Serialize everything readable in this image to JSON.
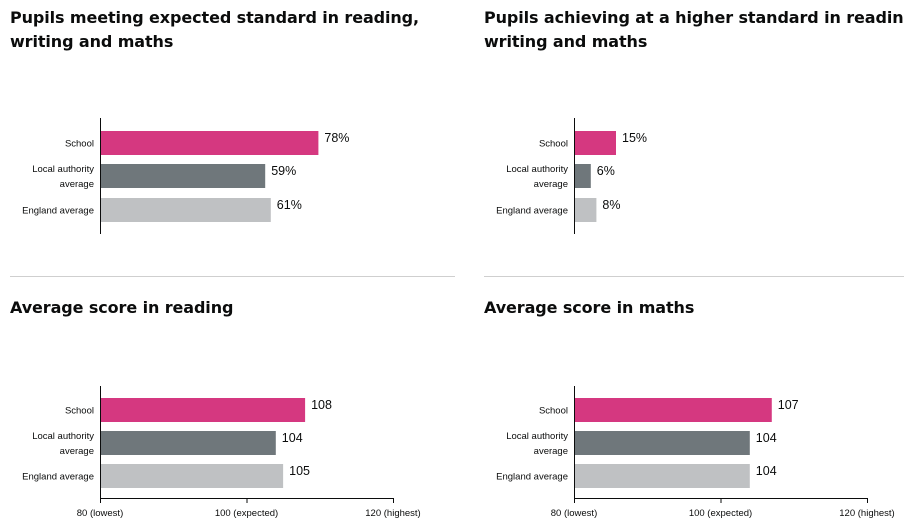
{
  "colors": {
    "school": "#d53880",
    "local": "#6f777b",
    "england": "#bfc1c3",
    "axis": "#0b0c0c"
  },
  "chart_data": [
    {
      "type": "bar",
      "title": "Pupils meeting expected standard in reading, writing and maths",
      "categories": [
        "School",
        "Local authority average",
        "England average"
      ],
      "values": [
        78,
        59,
        61
      ],
      "value_labels": [
        "78%",
        "59%",
        "61%"
      ],
      "xlim": [
        0,
        100
      ],
      "grid": false
    },
    {
      "type": "bar",
      "title": "Pupils achieving at a higher standard in reading, writing and maths",
      "categories": [
        "School",
        "Local authority average",
        "England average"
      ],
      "values": [
        15,
        6,
        8
      ],
      "value_labels": [
        "15%",
        "6%",
        "8%"
      ],
      "xlim": [
        0,
        100
      ],
      "grid": false
    },
    {
      "type": "bar",
      "title": "Average score in reading",
      "categories": [
        "School",
        "Local authority average",
        "England average"
      ],
      "values": [
        108,
        104,
        105
      ],
      "value_labels": [
        "108",
        "104",
        "105"
      ],
      "xlim": [
        80,
        120
      ],
      "xticks": [
        80,
        100,
        120
      ],
      "xtick_labels": [
        "80 (lowest)",
        "100 (expected)",
        "120 (highest)"
      ],
      "grid": false
    },
    {
      "type": "bar",
      "title": "Average score in maths",
      "categories": [
        "School",
        "Local authority average",
        "England average"
      ],
      "values": [
        107,
        104,
        104
      ],
      "value_labels": [
        "107",
        "104",
        "104"
      ],
      "xlim": [
        80,
        120
      ],
      "xticks": [
        80,
        100,
        120
      ],
      "xtick_labels": [
        "80 (lowest)",
        "100 (expected)",
        "120 (highest)"
      ],
      "grid": false
    }
  ]
}
